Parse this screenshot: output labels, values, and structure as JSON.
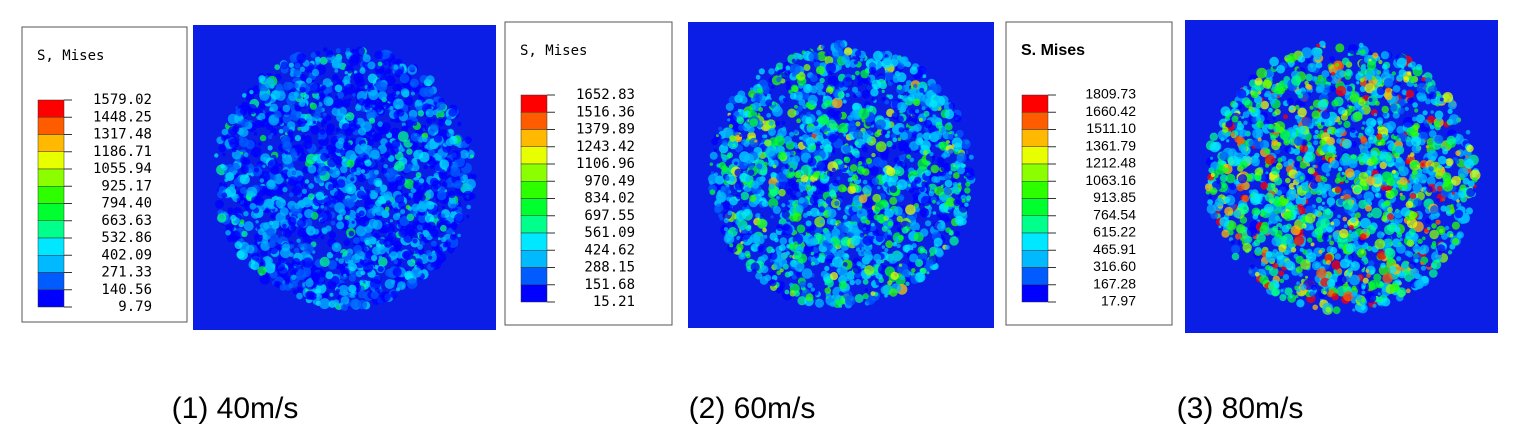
{
  "panels": [
    {
      "legend_title": "S, Mises",
      "legend_values": [
        "1579.02",
        "1448.25",
        "1317.48",
        "1186.71",
        "1055.94",
        "925.17",
        "794.40",
        "663.63",
        "532.86",
        "402.09",
        "271.33",
        "140.56",
        "9.79"
      ],
      "caption": "(1) 40m/s"
    },
    {
      "legend_title": "S, Mises",
      "legend_values": [
        "1652.83",
        "1516.36",
        "1379.89",
        "1243.42",
        "1106.96",
        "970.49",
        "834.02",
        "697.55",
        "561.09",
        "424.62",
        "288.15",
        "151.68",
        "15.21"
      ],
      "caption": "(2) 60m/s"
    },
    {
      "legend_title": "S. Mises",
      "legend_values": [
        "1809.73",
        "1660.42",
        "1511.10",
        "1361.79",
        "1212.48",
        "1063.16",
        "913.85",
        "764.54",
        "615.22",
        "465.91",
        "316.60",
        "167.28",
        "17.97"
      ],
      "caption": "(3) 80m/s"
    }
  ]
}
